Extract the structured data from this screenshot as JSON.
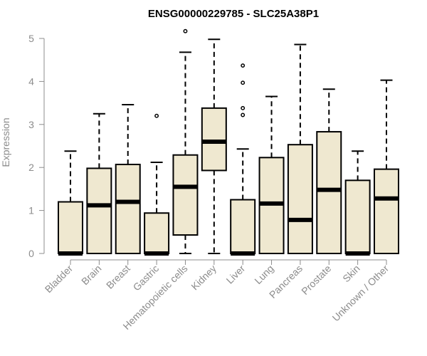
{
  "chart_data": {
    "type": "boxplot",
    "title": "ENSG00000229785 - SLC25A38P1",
    "ylabel": "Expression",
    "ylim": [
      0,
      5
    ],
    "yticks": [
      0,
      1,
      2,
      3,
      4,
      5
    ],
    "categories": [
      "Bladder",
      "Brain",
      "Breast",
      "Gastric",
      "Hematopoietic cells",
      "Kidney",
      "Liver",
      "Lung",
      "Pancreas",
      "Prostate",
      "Skin",
      "Unknown / Other"
    ],
    "boxes": [
      {
        "min": 0,
        "q1": 0,
        "median": 0,
        "q3": 1.2,
        "max": 2.38,
        "outliers": []
      },
      {
        "min": 0,
        "q1": 0,
        "median": 1.12,
        "q3": 1.98,
        "max": 3.25,
        "outliers": []
      },
      {
        "min": 0,
        "q1": 0,
        "median": 1.2,
        "q3": 2.07,
        "max": 3.46,
        "outliers": []
      },
      {
        "min": 0,
        "q1": 0,
        "median": 0,
        "q3": 0.94,
        "max": 2.12,
        "outliers": [
          3.2
        ]
      },
      {
        "min": 0,
        "q1": 0.43,
        "median": 1.55,
        "q3": 2.29,
        "max": 4.68,
        "outliers": [
          5.17
        ]
      },
      {
        "min": 0,
        "q1": 1.93,
        "median": 2.6,
        "q3": 3.38,
        "max": 4.98,
        "outliers": []
      },
      {
        "min": 0,
        "q1": 0,
        "median": 0,
        "q3": 1.25,
        "max": 2.43,
        "outliers": [
          3.22,
          3.38,
          3.97,
          4.37
        ]
      },
      {
        "min": 0,
        "q1": 0,
        "median": 1.16,
        "q3": 2.23,
        "max": 3.65,
        "outliers": []
      },
      {
        "min": 0,
        "q1": 0,
        "median": 0.78,
        "q3": 2.53,
        "max": 4.86,
        "outliers": []
      },
      {
        "min": 0,
        "q1": 0,
        "median": 1.48,
        "q3": 2.83,
        "max": 3.82,
        "outliers": []
      },
      {
        "min": 0,
        "q1": 0,
        "median": 0,
        "q3": 1.7,
        "max": 2.38,
        "outliers": []
      },
      {
        "min": 0,
        "q1": 0,
        "median": 1.28,
        "q3": 1.96,
        "max": 4.03,
        "outliers": []
      }
    ],
    "box_color": "#efe8d0",
    "line_color": "#000000",
    "axis_color": "#8c8c8c",
    "grid": false
  }
}
